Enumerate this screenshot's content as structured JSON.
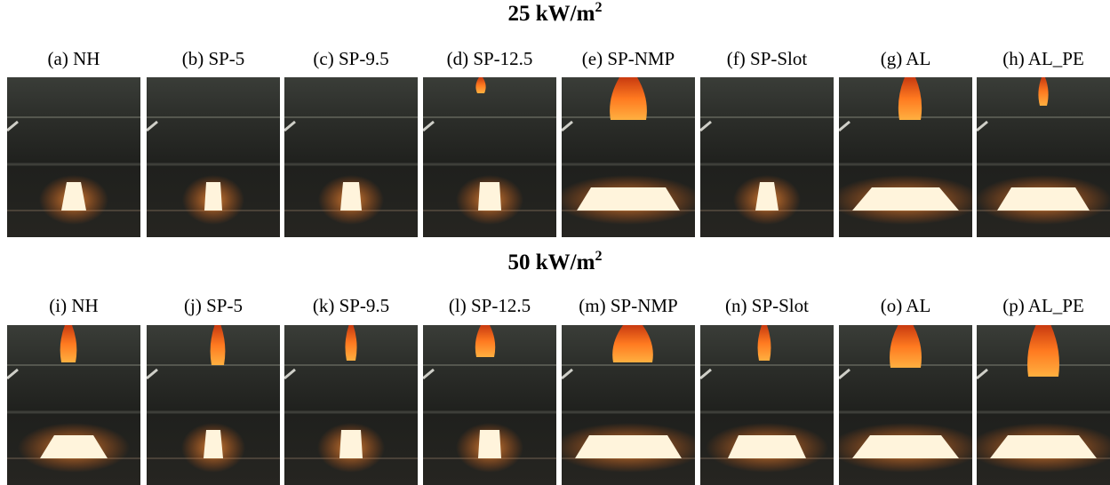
{
  "rows": [
    {
      "heading": {
        "text": "25 kW/m",
        "sup": "2"
      },
      "panels": [
        "(a) NH",
        "(b) SP-5",
        "(c) SP-9.5",
        "(d) SP-12.5",
        "(e) SP-NMP",
        "(f) SP-Slot",
        "(g) AL",
        "(h) AL_PE"
      ]
    },
    {
      "heading": {
        "text": "50 kW/m",
        "sup": "2"
      },
      "panels": [
        "(i) NH",
        "(j) SP-5",
        "(k) SP-9.5",
        "(l) SP-12.5",
        "(m) SP-NMP",
        "(n) SP-Slot",
        "(o) AL",
        "(p) AL_PE"
      ]
    }
  ]
}
